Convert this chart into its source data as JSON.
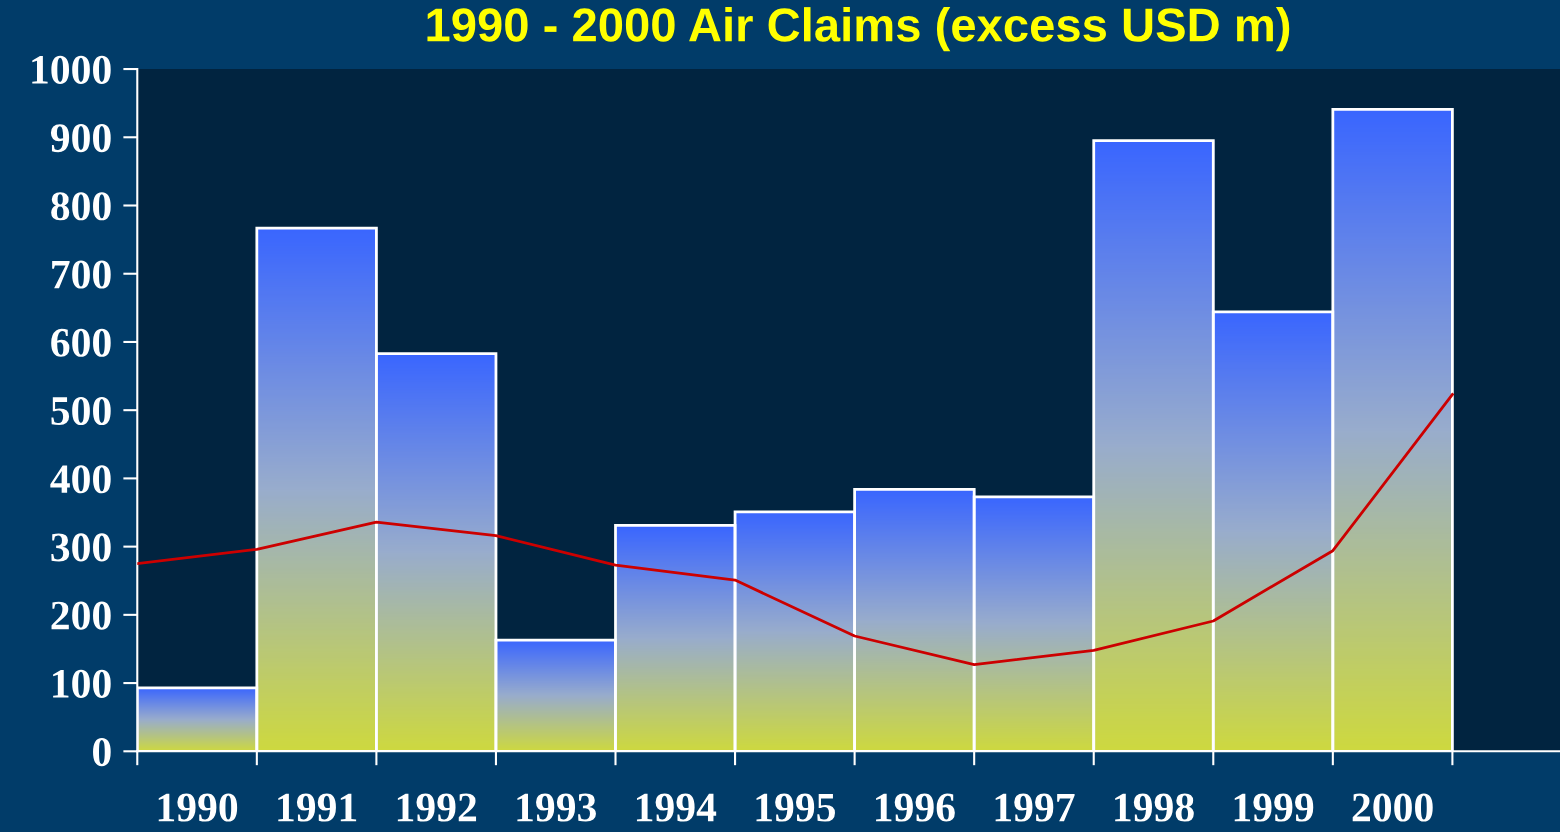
{
  "chart_data": {
    "type": "bar",
    "title": "1990 - 2000 Air Claims (excess USD m)",
    "xlim": [
      1989.5,
      2001.4
    ],
    "ylim": [
      0,
      1000
    ],
    "xticks": [
      {
        "value": 1989.5,
        "label": null
      },
      {
        "value": 1990,
        "label": "1990"
      },
      {
        "value": 1990.5,
        "label": null
      },
      {
        "value": 1991,
        "label": "1991"
      },
      {
        "value": 1991.5,
        "label": null
      },
      {
        "value": 1992,
        "label": "1992"
      },
      {
        "value": 1992.5,
        "label": null
      },
      {
        "value": 1993,
        "label": "1993"
      },
      {
        "value": 1993.5,
        "label": null
      },
      {
        "value": 1994,
        "label": "1994"
      },
      {
        "value": 1994.5,
        "label": null
      },
      {
        "value": 1995,
        "label": "1995"
      },
      {
        "value": 1995.5,
        "label": null
      },
      {
        "value": 1996,
        "label": "1996"
      },
      {
        "value": 1996.5,
        "label": null
      },
      {
        "value": 1997,
        "label": "1997"
      },
      {
        "value": 1997.5,
        "label": null
      },
      {
        "value": 1998,
        "label": "1998"
      },
      {
        "value": 1998.5,
        "label": null
      },
      {
        "value": 1999,
        "label": "1999"
      },
      {
        "value": 1999.5,
        "label": null
      },
      {
        "value": 2000,
        "label": "2000"
      },
      {
        "value": 2000.5,
        "label": null
      }
    ],
    "yticks": [
      0,
      100,
      200,
      300,
      400,
      500,
      600,
      700,
      800,
      900,
      1000
    ],
    "grid": false,
    "series": [
      {
        "color": "#3a66ff",
        "x": [
          1990,
          1991,
          1992,
          1993,
          1994,
          1995,
          1996,
          1997,
          1998,
          1999,
          2000
        ],
        "values": [
          93,
          767,
          583,
          163,
          331,
          351,
          384,
          373,
          895,
          644,
          941
        ]
      },
      {
        "type": "line",
        "color": "#cc0000",
        "x": [
          1989.5,
          1990.5,
          1991.5,
          1992.5,
          1993.5,
          1994.5,
          1995.5,
          1996.5,
          1997.5,
          1998.5,
          1999.5,
          2000.5
        ],
        "values": [
          275,
          296,
          336,
          316,
          273,
          251,
          169,
          127,
          148,
          191,
          294,
          523
        ]
      }
    ]
  }
}
